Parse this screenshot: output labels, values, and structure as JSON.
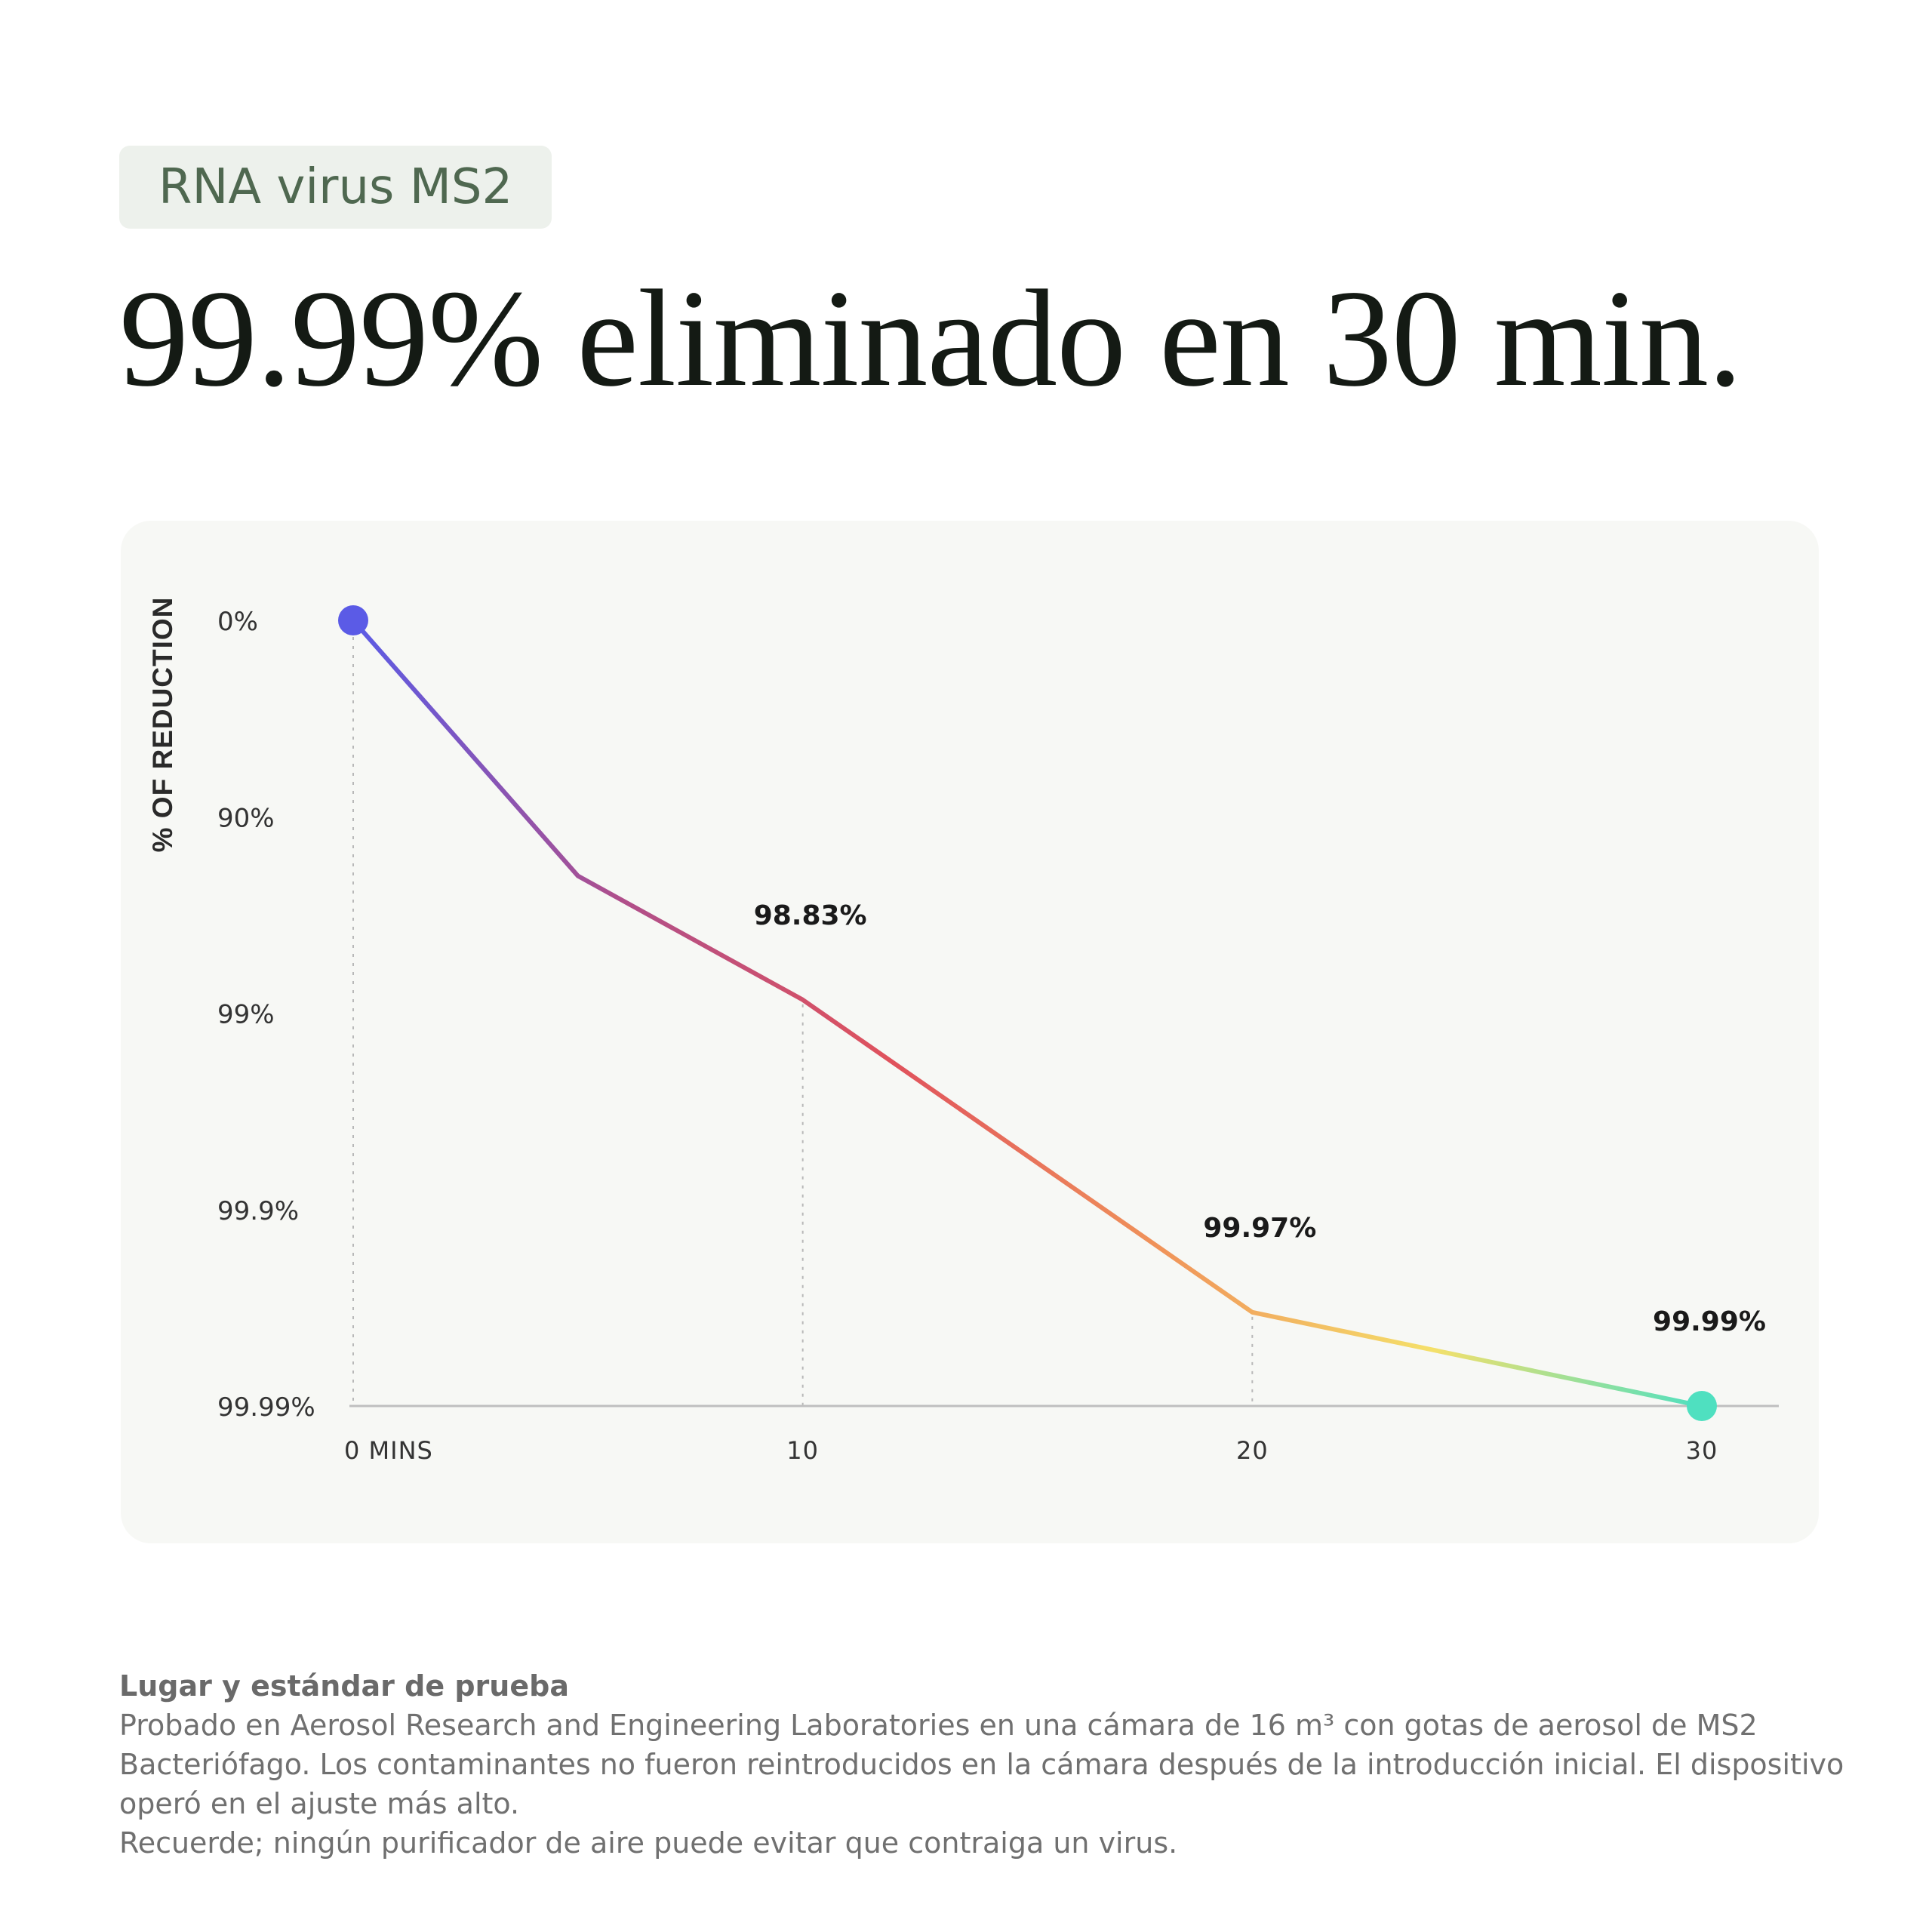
{
  "badge": "RNA virus MS2",
  "headline": "99.99% eliminado en 30 min.",
  "chart_data": {
    "type": "line",
    "ylabel": "% OF REDUCTION",
    "y_tick_labels": [
      "0%",
      "90%",
      "99%",
      "99.9%",
      "99.99%"
    ],
    "x_tick_labels": [
      "0 MINS",
      "10",
      "20",
      "30"
    ],
    "x": [
      0,
      5,
      10,
      20,
      30
    ],
    "y": [
      0,
      95,
      98.83,
      99.97,
      99.99
    ],
    "xlim": [
      0,
      30
    ],
    "data_labels": [
      {
        "x": 10,
        "text": "98.83%"
      },
      {
        "x": 20,
        "text": "99.97%"
      },
      {
        "x": 30,
        "text": "99.99%"
      }
    ],
    "gradient_colors": [
      "#5b5be6",
      "#b04f8a",
      "#e0525c",
      "#f0945a",
      "#f5e06a",
      "#4fe0c0"
    ],
    "start_marker_color": "#5b5be6",
    "end_marker_color": "#4fe0c0",
    "grid": "vertical dotted"
  },
  "footer": {
    "title": "Lugar y estándar de prueba",
    "lines": [
      "Probado en Aerosol Research and Engineering Laboratories en una cámara de 16 m³ con gotas de aerosol de MS2",
      "Bacteriófago. Los contaminantes no fueron reintroducidos en la cámara después de la introducción inicial. El dispositivo",
      "operó en el ajuste más alto.",
      "Recuerde; ningún purificador de aire puede evitar que contraiga un virus."
    ]
  }
}
